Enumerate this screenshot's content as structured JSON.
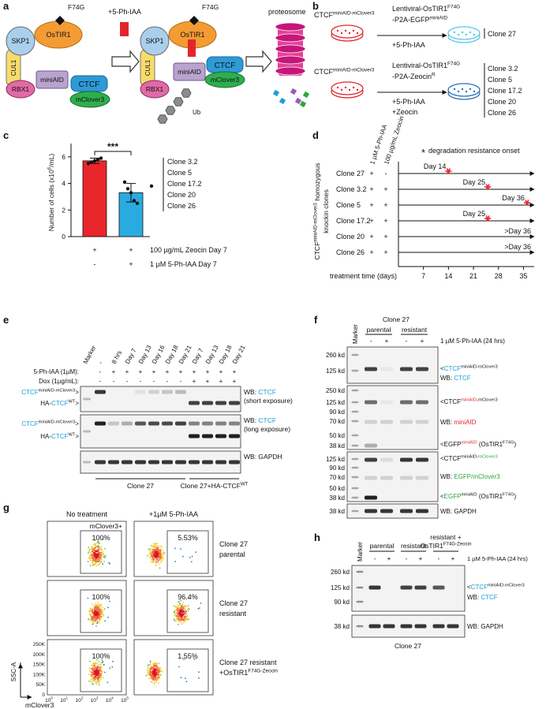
{
  "panel_a": {
    "label": "a",
    "complex": {
      "skp1": "SKP1",
      "ostir1": "OsTIR1",
      "mutation": "F74G",
      "cul1": "CUL1",
      "rbx1": "RBX1",
      "miniaid": "miniAID",
      "ctcf": "CTCF",
      "mclover3": "mClover3"
    },
    "treatment": "+5-Ph-IAA",
    "bound": {
      "skp1": "SKP1",
      "ostir1": "OsTIR1",
      "mutation": "F74G",
      "cul1": "CUL1",
      "rbx1": "RBX1",
      "miniaid": "miniAID",
      "ctcf": "CTCF",
      "mclover3": "mClover3",
      "ub": "Ub"
    },
    "proteosome": "proteosome"
  },
  "panel_b": {
    "label": "b",
    "rows": [
      {
        "parent": [
          "CTCF",
          {
            "text": "miniAID-mClover3",
            "sup": true
          }
        ],
        "vector": [
          [
            "Lentiviral-OsTIR1",
            {
              "text": "F74G",
              "sup": true
            }
          ],
          [
            "-P2A-EGFP",
            {
              "text": "miniAID",
              "sup": true
            }
          ]
        ],
        "treatment": [
          "+5-Ph-IAA"
        ],
        "clones": [
          "Clone 27"
        ],
        "color": "#5cc6e8"
      },
      {
        "parent": [
          "CTCF",
          {
            "text": "miniAID-mClover3",
            "sup": true
          }
        ],
        "vector": [
          [
            "Lentiviral-OsTIR1",
            {
              "text": "F74G",
              "sup": true
            }
          ],
          [
            "-P2A-Zeocin",
            {
              "text": "R",
              "sup": true
            }
          ]
        ],
        "treatment": [
          "+5-Ph-IAA",
          "+Zeocin"
        ],
        "clones": [
          "Clone 3.2",
          "Clone 5",
          "Clone 17.2",
          "Clone 20",
          "Clone 26"
        ],
        "color": "#2a6fb8"
      }
    ]
  },
  "panel_c": {
    "label": "c",
    "ylabel": [
      "Number of cells (x10",
      {
        "text": "6",
        "sup": true
      },
      "/mL)"
    ],
    "ylim": [
      0,
      7
    ],
    "yticks": [
      0,
      2,
      4,
      6
    ],
    "values": [
      5.7,
      3.3
    ],
    "errors": [
      0.2,
      0.7
    ],
    "colors": [
      "#e8262b",
      "#29abe2"
    ],
    "points": [
      [
        5.5,
        5.6,
        5.7,
        5.8,
        5.9
      ],
      [
        4.1,
        3.6,
        3.3,
        2.7,
        2.5
      ]
    ],
    "significance": "***",
    "conditions": [
      {
        "signs": [
          "+",
          "+"
        ],
        "label": "100 µg/mL Zeocin Day 7"
      },
      {
        "signs": [
          "-",
          "+"
        ],
        "label": "1 µM 5-Ph-IAA Day 7"
      }
    ],
    "clones": [
      "Clone 3.2",
      "Clone 5",
      "Clone 17.2",
      "Clone 20",
      "Clone 26"
    ]
  },
  "panel_d": {
    "label": "d",
    "column_headers": [
      "1 µM 5-Ph-IAA",
      "100 µg/mL Zeocin"
    ],
    "legend": {
      "symbol": "*",
      "text": "degradation resistance onset"
    },
    "ylabel": [
      [
        "CTCF",
        {
          "text": "miniAID-mClover3",
          "sup": true
        },
        " homozygous"
      ],
      [
        "knockin clones"
      ]
    ],
    "rows": [
      {
        "clone": "Clone 27",
        "signs": [
          "+",
          "-"
        ],
        "onset": 14,
        "label": "Day 14"
      },
      {
        "clone": "Clone 3.2",
        "signs": [
          "+",
          "+"
        ],
        "onset": 25,
        "label": "Day 25"
      },
      {
        "clone": "Clone 5",
        "signs": [
          "+",
          "+"
        ],
        "onset": 36,
        "label": "Day 36"
      },
      {
        "clone": "Clone 17.2",
        "signs": [
          "+",
          "+"
        ],
        "onset": 25,
        "label": "Day 25"
      },
      {
        "clone": "Clone 20",
        "signs": [
          "+",
          "+"
        ],
        "onset": null,
        "label": ">Day 36"
      },
      {
        "clone": "Clone 26",
        "signs": [
          "+",
          "+"
        ],
        "onset": null,
        "label": ">Day 36"
      }
    ],
    "xlabel": "treatment time (days)",
    "xlim": [
      0,
      38
    ],
    "xticks": [
      7,
      14,
      21,
      28,
      35
    ],
    "star_color": "#e3262c"
  },
  "panel_e": {
    "label": "e",
    "marker": "Marker",
    "lanes": [
      "-",
      "8 hrs",
      "Day 7",
      "Day 13",
      "Day 16",
      "Day 18",
      "Day 21",
      "Day 7",
      "Day 13",
      "Day 18",
      "Day 21"
    ],
    "treatments": [
      {
        "name": "5-Ph-IAA (1µM):",
        "signs": [
          "-",
          "+",
          "+",
          "+",
          "+",
          "+",
          "+",
          "+",
          "+",
          "+",
          "+"
        ]
      },
      {
        "name": "Dox (1µg/mL):",
        "signs": [
          "-",
          "-",
          "-",
          "-",
          "-",
          "-",
          "-",
          "+",
          "+",
          "+",
          "+"
        ]
      }
    ],
    "blots": [
      {
        "bands": [
          [
            {
              "text": "CTCF",
              "color": "#1b9fd8"
            },
            {
              "text": "miniAID-mClover3",
              "sup": true
            },
            ">"
          ],
          [
            "HA-",
            {
              "text": "CTCF",
              "color": "#1b9fd8"
            },
            {
              "text": "WT",
              "sup": true
            },
            ">"
          ]
        ],
        "wb": [
          [
            "WB: ",
            {
              "text": "CTCF",
              "color": "#1b9fd8"
            }
          ],
          [
            "(short exposure)"
          ]
        ]
      },
      {
        "bands": [
          [
            {
              "text": "CTCF",
              "color": "#1b9fd8"
            },
            {
              "text": "miniAID-mClover3",
              "sup": true
            },
            ">"
          ],
          [
            "HA-",
            {
              "text": "CTCF",
              "color": "#1b9fd8"
            },
            {
              "text": "WT",
              "sup": true
            },
            ">"
          ]
        ],
        "wb": [
          [
            "WB: ",
            {
              "text": "CTCF",
              "color": "#1b9fd8"
            }
          ],
          [
            "(long exposure)"
          ]
        ]
      },
      {
        "bands": [],
        "wb": [
          [
            "WB: GAPDH"
          ]
        ]
      }
    ],
    "groups": [
      [
        "Clone 27"
      ],
      [
        "Clone 27+HA-CTCF",
        {
          "text": "WT",
          "sup": true
        }
      ]
    ]
  },
  "panel_f": {
    "label": "f",
    "marker": "Marker",
    "clone": "Clone 27",
    "groups": [
      "parental",
      "resistant"
    ],
    "signs": [
      "-",
      "+",
      "-",
      "+"
    ],
    "treatment": "1 µM 5-Ph-IAA (24 hrs)",
    "blots": [
      {
        "kd": [
          "260 kd",
          "125 kd"
        ],
        "labels": [
          [
            "<",
            {
              "text": "CTCF",
              "color": "#1b9fd8"
            },
            {
              "text": "miniAID-mClover3",
              "sup": true
            }
          ],
          [
            "WB: ",
            {
              "text": "CTCF",
              "color": "#1b9fd8"
            }
          ]
        ]
      },
      {
        "kd": [
          "250 kd",
          "125 kd",
          "90 kd",
          "70 kd",
          "50 kd",
          "38 kd"
        ],
        "labels": [
          [
            "<CTCF",
            {
              "text": "miniAID",
              "sup": true,
              "color": "#e3262c"
            },
            {
              "text": "-mClover3",
              "sup": true
            }
          ],
          [
            "WB: ",
            {
              "text": "miniAID",
              "color": "#e3262c"
            }
          ],
          [
            "<EGFP",
            {
              "text": "miniAID",
              "sup": true,
              "color": "#e3262c"
            },
            " (OsTIR1",
            {
              "text": "F74G",
              "sup": true
            },
            ")"
          ]
        ]
      },
      {
        "kd": [
          "125 kd",
          "90 kd",
          "70 kd",
          "50 kd",
          "38 kd"
        ],
        "labels": [
          [
            "<CTCF",
            {
              "text": "miniAID-",
              "sup": true
            },
            {
              "text": "mClover3",
              "sup": true,
              "color": "#2aa839"
            }
          ],
          [
            "WB: ",
            {
              "text": "EGFP/mClover3",
              "color": "#2aa839"
            }
          ],
          [
            "<",
            {
              "text": "EGFP",
              "color": "#2aa839"
            },
            {
              "text": "miniAID",
              "sup": true
            },
            " (OsTIR1",
            {
              "text": "F74G",
              "sup": true
            },
            ")"
          ]
        ]
      },
      {
        "kd": [
          "38 kd"
        ],
        "labels": [
          [
            "WB: GAPDH"
          ]
        ]
      }
    ]
  },
  "panel_g": {
    "label": "g",
    "columns": [
      "No treatment",
      "+1µM 5-Ph-IAA"
    ],
    "gate": "mClover3+",
    "percent": [
      [
        "100%",
        "5.53%"
      ],
      [
        "100%",
        "96.4%"
      ],
      [
        "100%",
        "1.55%"
      ]
    ],
    "rows": [
      [
        [
          "Clone 27"
        ],
        [
          "parental"
        ]
      ],
      [
        [
          "Clone 27"
        ],
        [
          "resistant"
        ]
      ],
      [
        [
          "Clone 27 resistant"
        ],
        [
          "+OsTIR1",
          {
            "text": "F74G-Zeocin",
            "sup": true
          }
        ]
      ]
    ],
    "ylabel": "SSC-A",
    "yticks": [
      "0",
      "50K",
      "100K",
      "150K",
      "200K",
      "250K"
    ],
    "xticks": [
      [
        "10",
        {
          "text": "0",
          "sup": true
        }
      ],
      [
        "10",
        {
          "text": "1",
          "sup": true
        }
      ],
      [
        "10",
        {
          "text": "2",
          "sup": true
        }
      ],
      [
        "10",
        {
          "text": "3",
          "sup": true
        }
      ],
      [
        "10",
        {
          "text": "4",
          "sup": true
        }
      ],
      [
        "10",
        {
          "text": "5",
          "sup": true
        }
      ]
    ],
    "xlabel": "mClover3",
    "gate_color": "#2aa839"
  },
  "panel_h": {
    "label": "h",
    "marker": "Marker",
    "groups": [
      [
        "parental"
      ],
      [
        "resistant"
      ],
      [
        "resistant +",
        [
          "OsTIR1",
          {
            "text": "F74G-Zeocin",
            "sup": true
          }
        ]
      ]
    ],
    "signs": [
      "-",
      "+",
      "-",
      "+",
      "-",
      "+"
    ],
    "treatment": "1 µM 5-Ph-IAA (24 hrs)",
    "blots": [
      {
        "kd": [
          "260 kd",
          "125 kd",
          "90 kd"
        ],
        "labels": [
          [
            "<",
            {
              "text": "CTCF",
              "color": "#1b9fd8"
            },
            {
              "text": "miniAID-mClover3",
              "sup": true
            }
          ],
          [
            "WB: ",
            {
              "text": "CTCF",
              "color": "#1b9fd8"
            }
          ]
        ]
      },
      {
        "kd": [
          "38 kd"
        ],
        "labels": [
          [
            "WB: GAPDH"
          ]
        ]
      }
    ],
    "clone": "Clone 27"
  }
}
